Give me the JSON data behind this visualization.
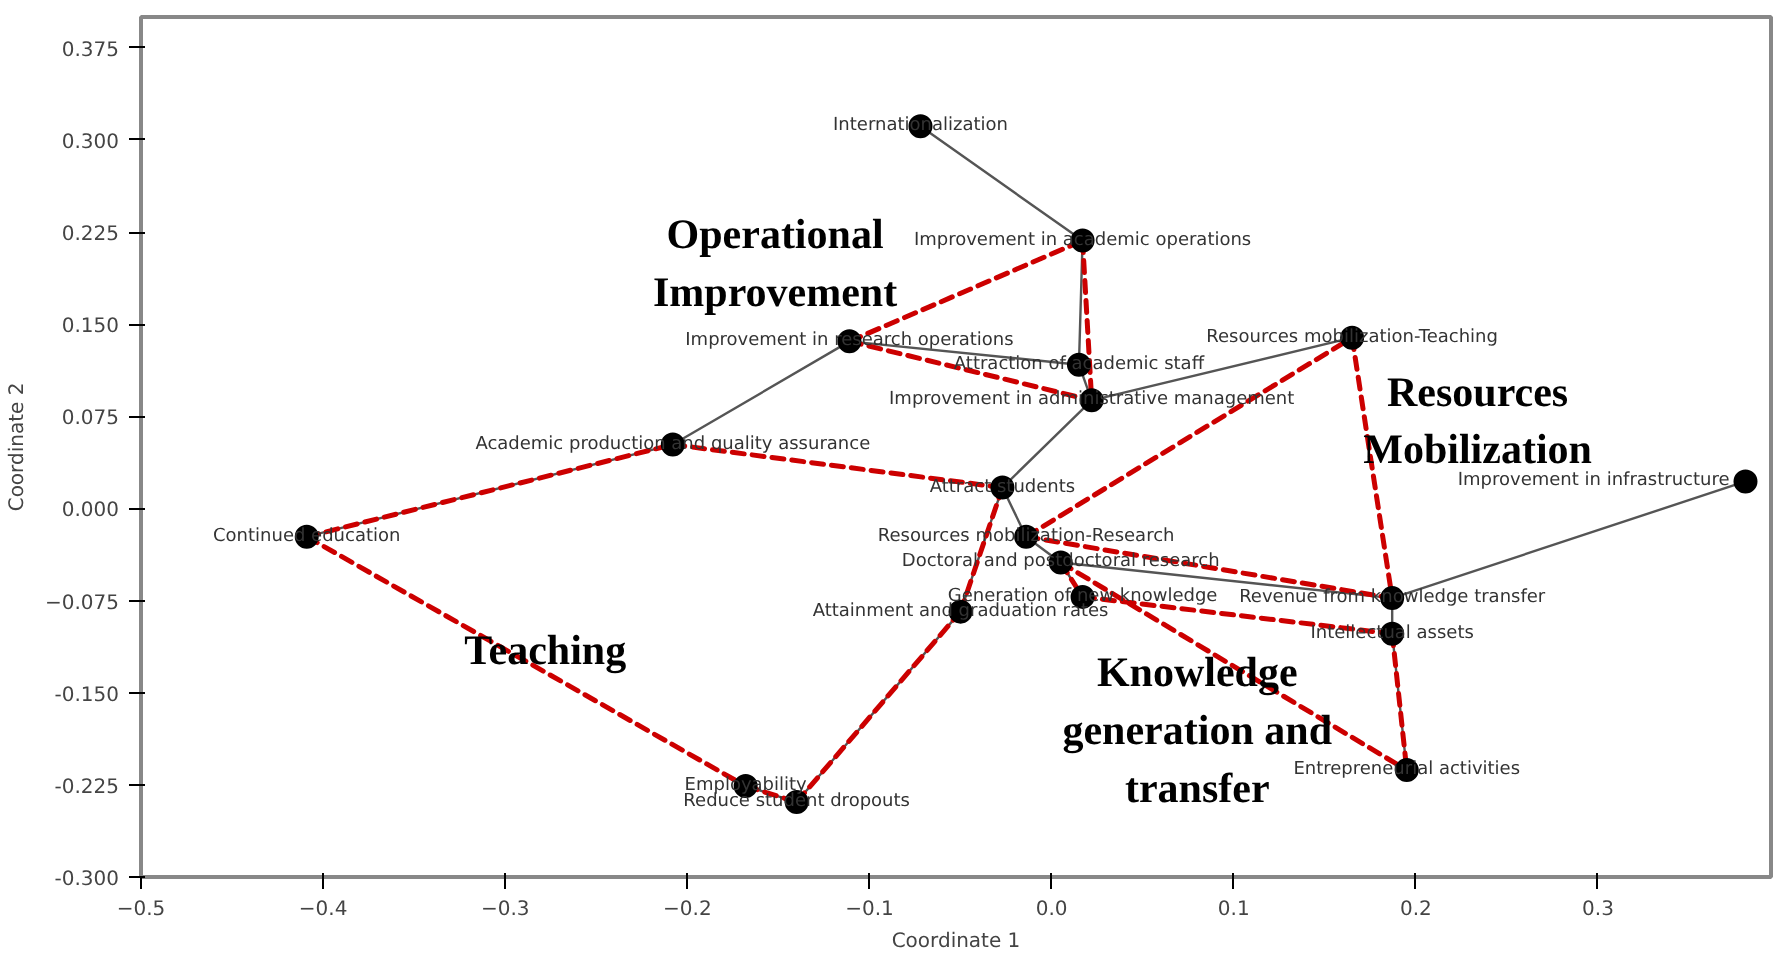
{
  "chart_data": {
    "type": "scatter",
    "xlabel": "Coordinate 1",
    "ylabel": "Coordinate 2",
    "xlim": [
      -0.5,
      0.395
    ],
    "ylim": [
      -0.3,
      0.4
    ],
    "xticks": [
      -0.5,
      -0.4,
      -0.3,
      -0.2,
      -0.1,
      {
        "value": 0,
        "label": "0.0"
      },
      0.1,
      0.2,
      0.3
    ],
    "yticks": [
      {
        "value": -0.3,
        "label": "-0.300"
      },
      {
        "value": -0.225,
        "label": "-0.225"
      },
      {
        "value": -0.15,
        "label": "-0.150"
      },
      -0.075,
      {
        "value": 0,
        "label": "0.000"
      },
      0.075,
      {
        "value": 0.15,
        "label": "0.150"
      },
      0.225,
      {
        "value": 0.3,
        "label": "0.300"
      },
      0.375
    ],
    "grid": false,
    "series": [
      {
        "type": "line",
        "color": "#555555",
        "line_style": "solid",
        "marker": "none",
        "x": [
          -0.072,
          0.017,
          0.015,
          0.022
        ],
        "values": [
          0.311,
          0.218,
          0.117,
          0.088
        ]
      },
      {
        "type": "line",
        "color": "#555555",
        "line_style": "solid",
        "marker": "none",
        "x": [
          -0.111,
          0.015
        ],
        "values": [
          0.136,
          0.117
        ]
      },
      {
        "type": "line",
        "color": "#555555",
        "line_style": "solid",
        "marker": "none",
        "x": [
          -0.409,
          -0.208,
          -0.111
        ],
        "values": [
          -0.023,
          0.052,
          0.136
        ]
      },
      {
        "type": "line",
        "color": "#555555",
        "line_style": "solid",
        "marker": "none",
        "x": [
          0.022,
          0.165
        ],
        "values": [
          0.088,
          0.139
        ]
      },
      {
        "type": "line",
        "color": "#555555",
        "line_style": "solid",
        "marker": "none",
        "x": [
          0.022,
          -0.027,
          -0.014,
          0.005,
          0.017
        ],
        "values": [
          0.088,
          0.017,
          -0.023,
          -0.044,
          -0.072
        ]
      },
      {
        "type": "line",
        "color": "#555555",
        "line_style": "solid",
        "marker": "none",
        "x": [
          0.195,
          0.187,
          0.187,
          0.381
        ],
        "values": [
          -0.213,
          -0.102,
          -0.073,
          0.022
        ]
      },
      {
        "type": "line",
        "color": "#555555",
        "line_style": "solid",
        "marker": "none",
        "x": [
          -0.168,
          -0.14,
          -0.05,
          -0.027
        ],
        "values": [
          -0.226,
          -0.239,
          -0.084,
          0.017
        ]
      },
      {
        "type": "line",
        "color": "#555555",
        "line_style": "solid",
        "marker": "none",
        "x": [
          0.005,
          0.187
        ],
        "values": [
          -0.044,
          -0.073
        ]
      },
      {
        "type": "line",
        "color": "#cc0000",
        "line_style": "dashed",
        "marker": "none",
        "x": [
          -0.111,
          0.017
        ],
        "values": [
          0.136,
          0.218
        ]
      },
      {
        "type": "line",
        "color": "#cc0000",
        "line_style": "dashed",
        "marker": "none",
        "x": [
          0.017,
          0.022
        ],
        "values": [
          0.218,
          0.088
        ]
      },
      {
        "type": "line",
        "color": "#cc0000",
        "line_style": "dashed",
        "marker": "none",
        "x": [
          -0.111,
          0.022
        ],
        "values": [
          0.136,
          0.088
        ]
      },
      {
        "type": "line",
        "color": "#cc0000",
        "line_style": "dashed",
        "marker": "none",
        "x": [
          -0.409,
          -0.208
        ],
        "values": [
          -0.023,
          0.052
        ]
      },
      {
        "type": "line",
        "color": "#cc0000",
        "line_style": "dashed",
        "marker": "none",
        "x": [
          -0.208,
          -0.027
        ],
        "values": [
          0.052,
          0.017
        ]
      },
      {
        "type": "line",
        "color": "#cc0000",
        "line_style": "dashed",
        "marker": "none",
        "x": [
          -0.05,
          -0.027
        ],
        "values": [
          -0.084,
          0.017
        ]
      },
      {
        "type": "line",
        "color": "#cc0000",
        "line_style": "dashed",
        "marker": "none",
        "x": [
          -0.14,
          -0.05
        ],
        "values": [
          -0.239,
          -0.084
        ]
      },
      {
        "type": "line",
        "color": "#cc0000",
        "line_style": "dashed",
        "marker": "none",
        "x": [
          -0.168,
          -0.14
        ],
        "values": [
          -0.226,
          -0.239
        ]
      },
      {
        "type": "line",
        "color": "#cc0000",
        "line_style": "dashed",
        "marker": "none",
        "x": [
          -0.409,
          -0.168
        ],
        "values": [
          -0.023,
          -0.226
        ]
      },
      {
        "type": "line",
        "color": "#cc0000",
        "line_style": "dashed",
        "marker": "none",
        "x": [
          0.165,
          0.187
        ],
        "values": [
          0.139,
          -0.073
        ]
      },
      {
        "type": "line",
        "color": "#cc0000",
        "line_style": "dashed",
        "marker": "none",
        "x": [
          -0.014,
          0.187
        ],
        "values": [
          -0.023,
          -0.073
        ]
      },
      {
        "type": "line",
        "color": "#cc0000",
        "line_style": "dashed",
        "marker": "none",
        "x": [
          -0.014,
          0.165
        ],
        "values": [
          -0.023,
          0.139
        ]
      },
      {
        "type": "line",
        "color": "#cc0000",
        "line_style": "dashed",
        "marker": "none",
        "x": [
          0.005,
          0.017
        ],
        "values": [
          -0.044,
          -0.072
        ]
      },
      {
        "type": "line",
        "color": "#cc0000",
        "line_style": "dashed",
        "marker": "none",
        "x": [
          0.017,
          0.187
        ],
        "values": [
          -0.072,
          -0.102
        ]
      },
      {
        "type": "line",
        "color": "#cc0000",
        "line_style": "dashed",
        "marker": "none",
        "x": [
          0.187,
          0.195
        ],
        "values": [
          -0.102,
          -0.213
        ]
      },
      {
        "type": "line",
        "color": "#cc0000",
        "line_style": "dashed",
        "marker": "none",
        "x": [
          0.005,
          0.195
        ],
        "values": [
          -0.044,
          -0.213
        ]
      },
      {
        "color": "#000000",
        "marker": "circle",
        "x": [
          -0.072,
          0.017,
          -0.111,
          0.015,
          0.022,
          0.165,
          -0.208,
          -0.409,
          -0.027,
          -0.014,
          0.005,
          0.017,
          -0.05,
          0.187,
          0.187,
          0.195,
          -0.168,
          -0.14,
          0.381
        ],
        "values": [
          0.311,
          0.218,
          0.136,
          0.117,
          0.088,
          0.139,
          0.052,
          -0.023,
          0.017,
          -0.023,
          -0.044,
          -0.072,
          -0.084,
          -0.073,
          -0.102,
          -0.213,
          -0.226,
          -0.239,
          0.022
        ]
      }
    ],
    "annotations": [
      {
        "text": "Internationalization",
        "x": -0.072,
        "y": 0.311
      },
      {
        "text": "Improvement in academic operations",
        "x": 0.017,
        "y": 0.218
      },
      {
        "text": "Improvement in research operations",
        "x": -0.111,
        "y": 0.136
      },
      {
        "text": "Attraction of academic staff",
        "x": 0.015,
        "y": 0.117
      },
      {
        "text": "Improvement in administrative management",
        "x": 0.022,
        "y": 0.088
      },
      {
        "text": "Resources mobilization-Teaching",
        "x": 0.165,
        "y": 0.139
      },
      {
        "text": "Academic production and quality assurance",
        "x": -0.208,
        "y": 0.052
      },
      {
        "text": "Continued education",
        "x": -0.409,
        "y": -0.023
      },
      {
        "text": "Attract students",
        "x": -0.027,
        "y": 0.017
      },
      {
        "text": "Resources mobilization-Research",
        "x": -0.014,
        "y": -0.023
      },
      {
        "text": "Doctoral and postdoctoral research",
        "x": 0.005,
        "y": -0.044
      },
      {
        "text": "Generation of new knowledge",
        "x": 0.017,
        "y": -0.072
      },
      {
        "text": "Attainment and graduation rates",
        "x": -0.05,
        "y": -0.084
      },
      {
        "text": "Revenue from knowledge transfer",
        "x": 0.187,
        "y": -0.073
      },
      {
        "text": "Intellectual assets",
        "x": 0.187,
        "y": -0.102
      },
      {
        "text": "Entrepreneurial activities",
        "x": 0.195,
        "y": -0.213
      },
      {
        "text": "Employability",
        "x": -0.168,
        "y": -0.226
      },
      {
        "text": "Reduce student dropouts",
        "x": -0.14,
        "y": -0.239
      },
      {
        "text": "Improvement in infrastructure",
        "x": 0.381,
        "y": 0.022
      },
      "Operational\nImprovement",
      "Resources\nMobilization",
      "Teaching",
      "Knowledge\ngeneration and\ntransfer"
    ]
  }
}
